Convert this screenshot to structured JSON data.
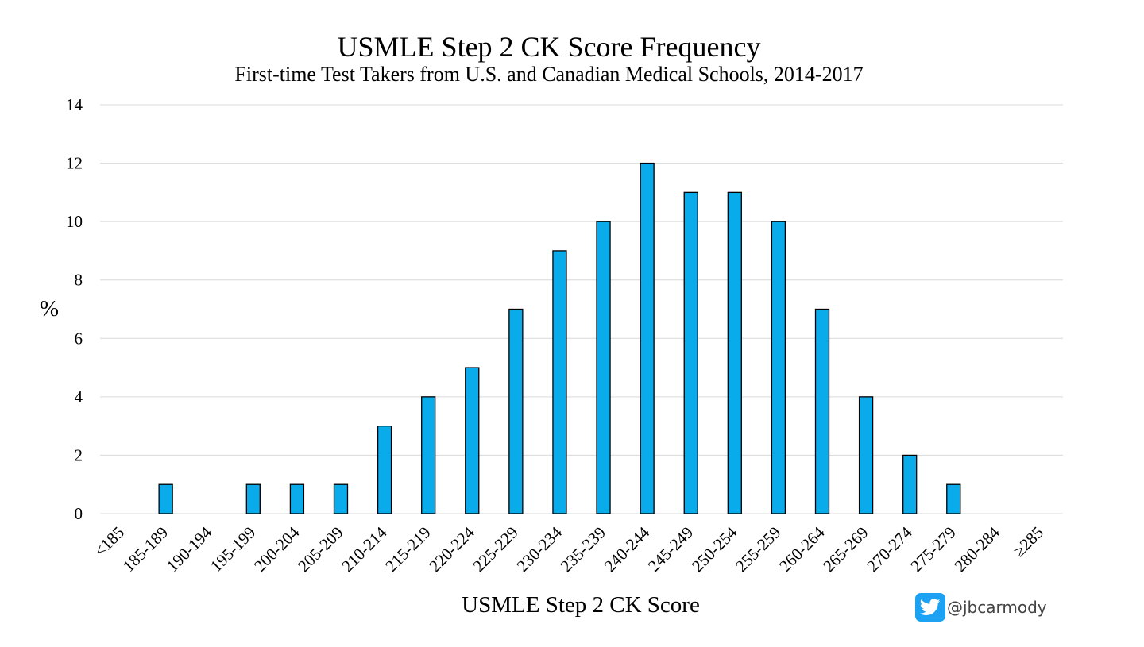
{
  "chart_data": {
    "type": "bar",
    "title": "USMLE Step 2 CK Score Frequency",
    "subtitle": "First-time Test Takers from U.S. and Canadian Medical Schools, 2014-2017",
    "xlabel": "USMLE Step 2 CK Score",
    "ylabel": "%",
    "ylim": [
      0,
      14
    ],
    "yticks": [
      "0",
      "2",
      "4",
      "6",
      "8",
      "10",
      "12",
      "14"
    ],
    "grid": true,
    "legend": "none",
    "categories": [
      "<185",
      "185-189",
      "190-194",
      "195-199",
      "200-204",
      "205-209",
      "210-214",
      "215-219",
      "220-224",
      "225-229",
      "230-234",
      "235-239",
      "240-244",
      "245-249",
      "250-254",
      "255-259",
      "260-264",
      "265-269",
      "270-274",
      "275-279",
      "280-284",
      "≥285"
    ],
    "values": [
      0,
      1,
      0,
      1,
      1,
      1,
      3,
      4,
      5,
      7,
      9,
      10,
      12,
      11,
      11,
      10,
      7,
      4,
      2,
      1,
      0,
      0
    ],
    "bar_color": "#0aabeb"
  },
  "attribution": {
    "icon": "twitter-icon",
    "handle": "@jbcarmody"
  }
}
